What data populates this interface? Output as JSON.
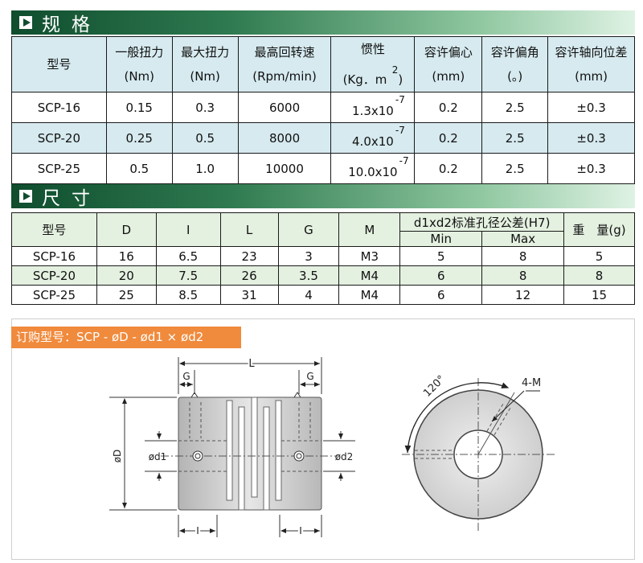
{
  "spec_section": {
    "title": "规格"
  },
  "spec_table": {
    "headers": [
      {
        "line1": "型号",
        "line2": ""
      },
      {
        "line1": "一般扭力",
        "line2": "(Nm)"
      },
      {
        "line1": "最大扭力",
        "line2": "(Nm)"
      },
      {
        "line1": "最高回转速",
        "line2": "(Rpm/min)"
      },
      {
        "line1": "惯性",
        "line2": "(Kg．m",
        "sup": "2",
        "tail": ")"
      },
      {
        "line1": "容许偏心",
        "line2": "(mm)"
      },
      {
        "line1": "容许偏角",
        "line2": "(。)"
      },
      {
        "line1": "容许轴向位差",
        "line2": "(mm)"
      }
    ],
    "rows": [
      {
        "model": "SCP-16",
        "normal_torque": "0.15",
        "max_torque": "0.3",
        "max_speed": "6000",
        "inertia": "1.3x10",
        "inertia_exp": "-7",
        "eccentricity": "0.2",
        "angle": "2.5",
        "axial": "±0.3"
      },
      {
        "model": "SCP-20",
        "normal_torque": "0.25",
        "max_torque": "0.5",
        "max_speed": "8000",
        "inertia": "4.0x10",
        "inertia_exp": "-7",
        "eccentricity": "0.2",
        "angle": "2.5",
        "axial": "±0.3"
      },
      {
        "model": "SCP-25",
        "normal_torque": "0.5",
        "max_torque": "1.0",
        "max_speed": "10000",
        "inertia": "10.0x10",
        "inertia_exp": "-7",
        "eccentricity": "0.2",
        "angle": "2.5",
        "axial": "±0.3"
      }
    ]
  },
  "dim_section": {
    "title": "尺寸"
  },
  "dim_table": {
    "headers": {
      "model": "型号",
      "D": "D",
      "I": "I",
      "L": "L",
      "G": "G",
      "M": "M",
      "bore_group": "d1xd2标准孔径公差(H7)",
      "min": "Min",
      "max": "Max",
      "weight": "重　量(g)"
    },
    "rows": [
      {
        "model": "SCP-16",
        "D": "16",
        "I": "6.5",
        "L": "23",
        "G": "3",
        "M": "M3",
        "min": "5",
        "max": "8",
        "weight": "5"
      },
      {
        "model": "SCP-20",
        "D": "20",
        "I": "7.5",
        "L": "26",
        "G": "3.5",
        "M": "M4",
        "min": "6",
        "max": "8",
        "weight": "8"
      },
      {
        "model": "SCP-25",
        "D": "25",
        "I": "8.5",
        "L": "31",
        "G": "4",
        "M": "M4",
        "min": "6",
        "max": "12",
        "weight": "15"
      }
    ]
  },
  "order": {
    "label": "订购型号：SCP - øD - ød1 × ød2"
  },
  "drawing": {
    "L": "L",
    "G_left": "G",
    "G_right": "G",
    "D": "øD",
    "d1": "ød1",
    "d2": "ød2",
    "I_left": "I",
    "I_right": "I",
    "angle": "120°",
    "holes": "4-M"
  }
}
